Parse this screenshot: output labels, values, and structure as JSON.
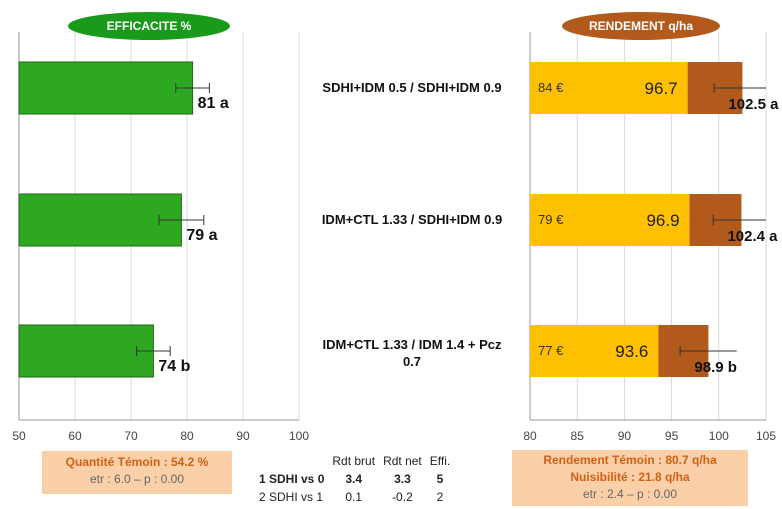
{
  "left_header": "EFFICACITE %",
  "right_header": "RENDEMENT q/ha",
  "colors": {
    "green": "#2ea820",
    "green_dark": "#1a6a12",
    "yellow": "#ffc000",
    "brown": "#b25a1c",
    "pill_green": "#1a9a1a",
    "pill_brown": "#b2591c",
    "box": "#fbd0a8",
    "box_text": "#d06015"
  },
  "chart_data": [
    {
      "type": "bar",
      "orientation": "horizontal",
      "title": "EFFICACITE %",
      "categories": [
        "SDHI+IDM 0.5 / SDHI+IDM 0.9",
        "IDM+CTL 1.33 / SDHI+IDM 0.9",
        "IDM+CTL 1.33 / IDM 1.4 + Pcz 0.7"
      ],
      "values": [
        81,
        79,
        74
      ],
      "errors": [
        3,
        4,
        3
      ],
      "labels": [
        "81 a",
        "79 a",
        "74 b"
      ],
      "xlim": [
        50,
        100
      ],
      "xticks": [
        "50",
        "60",
        "70",
        "80",
        "90",
        "100"
      ],
      "grid": true
    },
    {
      "type": "bar",
      "orientation": "horizontal",
      "stacked": true,
      "title": "RENDEMENT q/ha",
      "categories": [
        "SDHI+IDM 0.5 / SDHI+IDM 0.9",
        "IDM+CTL 1.33 / SDHI+IDM 0.9",
        "IDM+CTL 1.33 / IDM 1.4 + Pcz 0.7"
      ],
      "net_values": [
        96.7,
        96.9,
        93.6
      ],
      "net_labels": [
        "96.7",
        "96.9",
        "93.6"
      ],
      "total_values": [
        102.5,
        102.4,
        98.9
      ],
      "total_labels": [
        "102.5 a",
        "102.4 a",
        "98.9 b"
      ],
      "costs": [
        "84 €",
        "79 €",
        "77 €"
      ],
      "errors": [
        3,
        3,
        3
      ],
      "xlim": [
        80,
        105
      ],
      "xticks": [
        "80",
        "85",
        "90",
        "95",
        "100",
        "105"
      ],
      "grid": true
    }
  ],
  "left_box": {
    "line1": "Quantité Témoin : 54.2 %",
    "line2": "etr : 6.0 – p : 0.00"
  },
  "right_box": {
    "line1": "Rendement Témoin : 80.7 q/ha",
    "line2": "Nuisibilité : 21.8 q/ha",
    "line3": "etr : 2.4 – p : 0.00"
  },
  "stats_table": {
    "headers": [
      "",
      "Rdt brut",
      "Rdt net",
      "Effi."
    ],
    "rows": [
      [
        "1 SDHI vs 0",
        "3.4",
        "3.3",
        "5"
      ],
      [
        "2 SDHI vs 1",
        "0.1",
        "-0.2",
        "2"
      ]
    ]
  }
}
